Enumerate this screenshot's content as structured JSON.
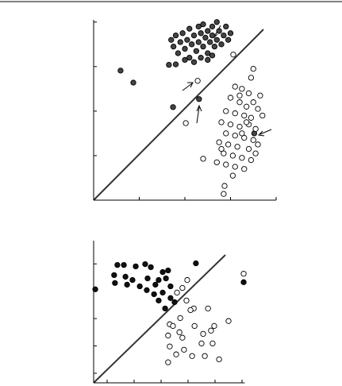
{
  "chart_data": [
    {
      "type": "scatter",
      "xlim": [
        0,
        4
      ],
      "ylim": [
        0,
        4.05
      ],
      "xticks": [
        0,
        1,
        2,
        3,
        4
      ],
      "yticks": [
        0,
        1,
        2,
        3,
        4
      ],
      "grid": false,
      "series": [
        {
          "color": "#444444",
          "x": [
            1.7,
            1.75,
            1.8,
            1.85,
            1.9,
            1.95,
            2.0,
            2.05,
            2.1,
            2.1,
            2.15,
            2.2,
            2.25,
            2.3,
            2.3,
            2.35,
            2.4,
            2.4,
            2.45,
            2.5,
            2.5,
            2.55,
            2.6,
            2.6,
            2.65,
            2.7,
            2.7,
            2.75,
            2.8,
            2.85,
            2.9,
            2.95,
            3.0,
            2.2,
            2.0,
            1.8,
            1.65,
            2.5,
            2.35,
            2.6,
            0.59,
            0.87,
            1.74,
            2.31,
            3.52
          ],
          "values": [
            3.6,
            3.45,
            3.7,
            3.3,
            3.55,
            3.75,
            3.4,
            3.6,
            3.85,
            3.2,
            3.5,
            3.7,
            3.35,
            3.9,
            3.55,
            3.75,
            3.45,
            3.95,
            3.65,
            3.8,
            3.3,
            3.55,
            3.9,
            3.7,
            3.45,
            4.0,
            3.6,
            3.8,
            3.5,
            3.7,
            3.9,
            3.6,
            3.75,
            3.1,
            3.15,
            3.05,
            3.04,
            3.15,
            3.2,
            3.25,
            2.91,
            2.64,
            2.09,
            2.27,
            1.5
          ]
        },
        {
          "color": "#ffffff",
          "x": [
            3.06,
            2.28,
            2.02,
            2.4,
            2.87,
            2.85,
            3.5,
            3.45,
            3.1,
            3.25,
            3.4,
            3.65,
            3.0,
            3.2,
            3.5,
            3.35,
            3.6,
            2.9,
            3.1,
            3.3,
            3.45,
            3.7,
            2.8,
            3.0,
            3.2,
            3.4,
            3.55,
            2.9,
            3.1,
            3.3,
            3.5,
            2.75,
            2.95,
            3.15,
            3.4,
            3.55,
            2.85,
            3.05,
            3.25,
            3.45,
            2.7,
            2.9,
            3.1,
            3.3,
            3.05,
            3.25,
            3.6,
            2.8,
            3.2,
            3.35
          ],
          "values": [
            3.27,
            2.68,
            1.73,
            0.93,
            0.32,
            0.14,
            2.95,
            2.75,
            2.55,
            2.5,
            2.4,
            2.35,
            2.3,
            2.2,
            2.2,
            2.1,
            2.05,
            2.0,
            1.95,
            1.9,
            1.85,
            1.9,
            1.75,
            1.7,
            1.65,
            1.7,
            1.6,
            1.5,
            1.45,
            1.4,
            1.35,
            1.3,
            1.25,
            1.2,
            1.15,
            1.05,
            1.05,
            1.0,
            0.95,
            0.9,
            0.85,
            0.8,
            0.75,
            0.7,
            0.55,
            1.5,
            1.25,
            1.15,
            2.35,
            1.75
          ]
        }
      ]
    },
    {
      "type": "scatter",
      "xlim": [
        0,
        5.6
      ],
      "ylim": [
        0.15,
        5.35
      ],
      "xticks": [
        0.5,
        1.5,
        2.5,
        3.5,
        4.5,
        5.5
      ],
      "yticks": [
        0.5,
        1.5,
        2.5,
        3.5,
        4.5
      ],
      "grid": false,
      "series": [
        {
          "color": "#111111",
          "x": [
            0.88,
            1.12,
            1.91,
            2.12,
            1.56,
            2.56,
            2.76,
            3.79,
            0.76,
            1.18,
            1.44,
            2.0,
            2.41,
            2.68,
            0.06,
            0.79,
            1.24,
            1.71,
            2.29,
            2.85,
            1.97,
            2.24,
            2.56,
            2.85,
            2.41,
            2.65,
            3.0,
            5.56
          ],
          "values": [
            4.46,
            4.46,
            4.49,
            4.38,
            4.41,
            4.2,
            4.26,
            4.52,
            4.09,
            4.03,
            3.91,
            3.97,
            3.91,
            3.97,
            3.57,
            3.8,
            3.74,
            3.68,
            3.74,
            3.68,
            3.54,
            3.39,
            3.45,
            3.25,
            3.16,
            2.87,
            3.1,
            3.83
          ]
        },
        {
          "color": "#ffffff",
          "x": [
            3.47,
            3.29,
            3.09,
            3.44,
            5.56,
            3.71,
            3.59,
            4.24,
            3.21,
            2.82,
            2.94,
            3.74,
            4.47,
            5.0,
            3.18,
            4.35,
            2.76,
            3.29,
            4.06,
            2.82,
            3.35,
            4.0,
            4.41,
            3.06,
            3.65,
            4.12,
            4.65,
            2.76
          ],
          "values": [
            3.91,
            3.62,
            3.45,
            3.16,
            4.14,
            2.87,
            2.81,
            2.87,
            2.52,
            2.29,
            2.23,
            2.23,
            2.23,
            2.41,
            2.0,
            2.06,
            1.88,
            1.8,
            1.94,
            1.48,
            1.36,
            1.59,
            1.59,
            1.19,
            1.13,
            1.13,
            1.01,
            0.9
          ]
        }
      ]
    }
  ]
}
